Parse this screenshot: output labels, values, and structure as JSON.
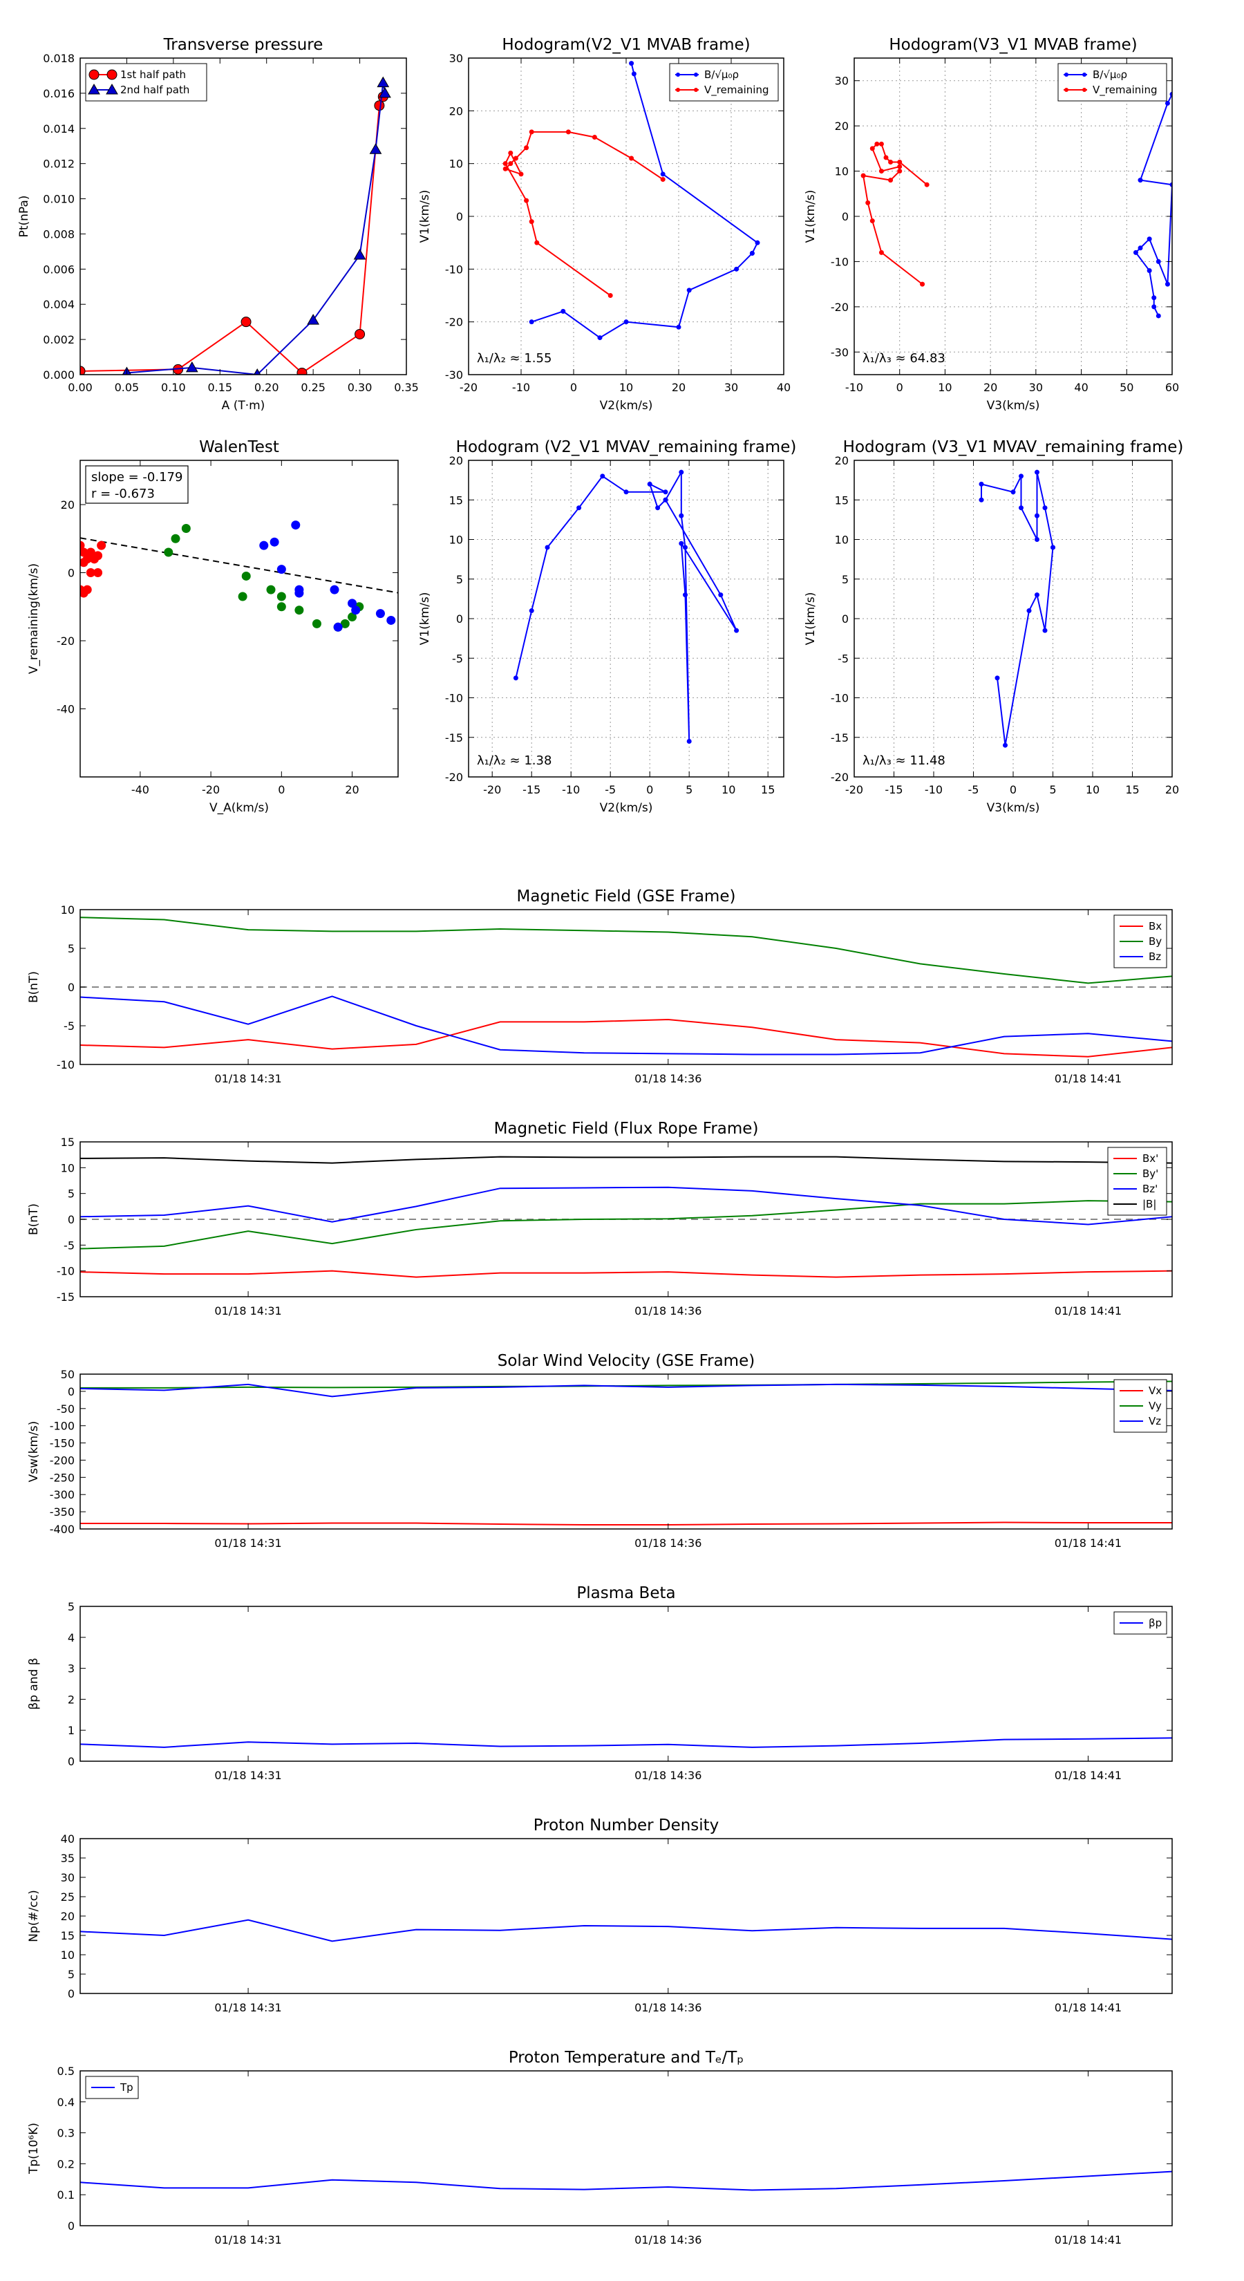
{
  "chart_data": [
    {
      "type": "scatter",
      "title": "Transverse pressure",
      "xlabel": "A (T·m)",
      "ylabel": "Pt(nPa)",
      "xlim": [
        0,
        0.35
      ],
      "ylim": [
        0,
        0.018
      ],
      "xticks": [
        0.0,
        0.05,
        0.1,
        0.15,
        0.2,
        0.25,
        0.3,
        0.35
      ],
      "xtick_labels": [
        "0.00",
        "0.05",
        "0.10",
        "0.15",
        "0.20",
        "0.25",
        "0.30",
        "0.35"
      ],
      "yticks": [
        0,
        0.002,
        0.004,
        0.006,
        0.008,
        0.01,
        0.012,
        0.014,
        0.016,
        0.018
      ],
      "ytick_labels": [
        "0.000",
        "0.002",
        "0.004",
        "0.006",
        "0.008",
        "0.010",
        "0.012",
        "0.014",
        "0.016",
        "0.018"
      ],
      "legend": "top-left",
      "series": [
        {
          "name": "1st half path",
          "color": "#ff0000",
          "marker": "circle",
          "x": [
            0.0,
            0.105,
            0.178,
            0.238,
            0.3,
            0.321,
            0.325
          ],
          "y": [
            0.0002,
            0.0003,
            0.003,
            0.0001,
            0.0023,
            0.0153,
            0.0158
          ]
        },
        {
          "name": "2nd half path",
          "color": "#0000cc",
          "marker": "triangle",
          "x": [
            0.05,
            0.12,
            0.19,
            0.25,
            0.3,
            0.317,
            0.325,
            0.327
          ],
          "y": [
            0.0001,
            0.0004,
            0.0,
            0.0031,
            0.0068,
            0.0128,
            0.0166,
            0.016
          ]
        }
      ]
    },
    {
      "type": "line",
      "title": "Hodogram(V2_V1 MVAB frame)",
      "xlabel": "V2(km/s)",
      "ylabel": "V1(km/s)",
      "xlim": [
        -20,
        40
      ],
      "ylim": [
        -30,
        30
      ],
      "xticks": [
        -20,
        -10,
        0,
        10,
        20,
        30,
        40
      ],
      "yticks": [
        -30,
        -20,
        -10,
        0,
        10,
        20,
        30
      ],
      "legend": "top-right",
      "annotation": "λ₁/λ₂ ≈ 1.55",
      "series": [
        {
          "name": "B/√μ₀ρ",
          "color": "#0000ff",
          "x": [
            11,
            11.5,
            17,
            35,
            34,
            34,
            31,
            22,
            20,
            10,
            5,
            -2,
            -8
          ],
          "y": [
            29,
            27,
            8,
            -5,
            -7,
            -7,
            -10,
            -14,
            -21,
            -20,
            -23,
            -18,
            -20
          ]
        },
        {
          "name": "V_remaining",
          "color": "#ff0000",
          "x": [
            17,
            11,
            4,
            -1,
            -8,
            -9,
            -11,
            -12,
            -13,
            -10,
            -12,
            -13,
            -9,
            -8,
            -7,
            7
          ],
          "y": [
            7,
            11,
            15,
            16,
            16,
            13,
            11,
            10,
            9,
            8,
            12,
            10,
            3,
            -1,
            -5,
            -15
          ]
        }
      ]
    },
    {
      "type": "line",
      "title": "Hodogram(V3_V1 MVAB frame)",
      "xlabel": "V3(km/s)",
      "ylabel": "V1(km/s)",
      "xlim": [
        -10,
        60
      ],
      "ylim": [
        -35,
        35
      ],
      "xticks": [
        -10,
        0,
        10,
        20,
        30,
        40,
        50,
        60
      ],
      "yticks": [
        -30,
        -20,
        -10,
        0,
        10,
        20,
        30
      ],
      "legend": "top-right",
      "annotation": "λ₁/λ₃ ≈ 64.83",
      "series": [
        {
          "name": "B/√μ₀ρ",
          "color": "#0000ff",
          "x": [
            60,
            59,
            53,
            60,
            59,
            57,
            55,
            53,
            52,
            55,
            56,
            56,
            57
          ],
          "y": [
            27,
            25,
            8,
            7,
            -15,
            -10,
            -5,
            -7,
            -8,
            -12,
            -18,
            -20,
            -22
          ]
        },
        {
          "name": "V_remaining",
          "color": "#ff0000",
          "x": [
            6,
            0,
            -2,
            -3,
            -4,
            -5,
            -6,
            -4,
            0,
            0,
            -2,
            -8,
            -7,
            -6,
            -4,
            5
          ],
          "y": [
            7,
            12,
            12,
            13,
            16,
            16,
            15,
            10,
            11,
            10,
            8,
            9,
            3,
            -1,
            -8,
            -15
          ]
        }
      ]
    },
    {
      "type": "scatter",
      "title": "WalenTest",
      "xlabel": "V_A(km/s)",
      "ylabel": "V_remaining(km/s)",
      "xlim": [
        -57,
        33
      ],
      "ylim": [
        -60,
        33
      ],
      "xticks": [
        -40,
        -20,
        0,
        20
      ],
      "yticks": [
        -40,
        -20,
        0,
        20
      ],
      "annotation_lines": [
        "slope = -0.179",
        "r = -0.673"
      ],
      "fit": {
        "slope": -0.179,
        "x": [
          -57,
          33
        ]
      },
      "series": [
        {
          "color": "#ff0000",
          "x": [
            -57,
            -56,
            -55,
            -54,
            -56,
            -53,
            -52,
            -54,
            -55,
            -56,
            -52,
            -57,
            -51
          ],
          "y": [
            8,
            6,
            4,
            6,
            3,
            4,
            5,
            0,
            -5,
            -6,
            0,
            -5,
            8
          ]
        },
        {
          "color": "#008000",
          "x": [
            -32,
            -30,
            -27,
            -11,
            -10,
            -3,
            0,
            0,
            5,
            10,
            16,
            18,
            20,
            22
          ],
          "y": [
            6,
            10,
            13,
            -7,
            -1,
            -5,
            -7,
            -10,
            -11,
            -15,
            -16,
            -15,
            -13,
            -10
          ]
        },
        {
          "color": "#0000ff",
          "x": [
            -5,
            -2,
            0,
            4,
            5,
            5,
            15,
            16,
            20,
            21,
            28,
            31
          ],
          "y": [
            8,
            9,
            1,
            14,
            -5,
            -6,
            -5,
            -16,
            -9,
            -11,
            -12,
            -14
          ]
        }
      ]
    },
    {
      "type": "line",
      "title": "Hodogram (V2_V1 MVAV_remaining frame)",
      "xlabel": "V2(km/s)",
      "ylabel": "V1(km/s)",
      "xlim": [
        -23,
        17
      ],
      "ylim": [
        -20,
        20
      ],
      "xticks": [
        -20,
        -15,
        -10,
        -5,
        0,
        5,
        10,
        15
      ],
      "yticks": [
        -20,
        -15,
        -10,
        -5,
        0,
        5,
        10,
        15,
        20
      ],
      "annotation": "λ₁/λ₂ ≈ 1.38",
      "series": [
        {
          "color": "#0000ff",
          "x": [
            -17,
            -15,
            -13,
            -9,
            -6,
            -3,
            2,
            0,
            1,
            2,
            4,
            4,
            4.5,
            5,
            4.5,
            4,
            11,
            9,
            2
          ],
          "y": [
            -7.5,
            1,
            9,
            14,
            18,
            16,
            16,
            17,
            14,
            15,
            18.5,
            13,
            9,
            -15.5,
            3,
            9.5,
            -1.5,
            3,
            15
          ]
        }
      ]
    },
    {
      "type": "line",
      "title": "Hodogram (V3_V1 MVAV_remaining frame)",
      "xlabel": "V3(km/s)",
      "ylabel": "V1(km/s)",
      "xlim": [
        -20,
        20
      ],
      "ylim": [
        -20,
        20
      ],
      "xticks": [
        -20,
        -15,
        -10,
        -5,
        0,
        5,
        10,
        15,
        20
      ],
      "yticks": [
        -20,
        -15,
        -10,
        -5,
        0,
        5,
        10,
        15,
        20
      ],
      "annotation": "λ₁/λ₃ ≈ 11.48",
      "series": [
        {
          "color": "#0000ff",
          "x": [
            -4,
            -4,
            0,
            1,
            1,
            3,
            3,
            3,
            4,
            5,
            5,
            4,
            3,
            2,
            -1,
            -2
          ],
          "y": [
            15,
            17,
            16,
            18,
            14,
            10,
            13,
            18.5,
            14,
            9,
            9,
            -1.5,
            3,
            1,
            -16,
            -7.5
          ]
        }
      ]
    },
    {
      "type": "line",
      "title": "Magnetic Field (GSE Frame)",
      "ylabel": "B(nT)",
      "ylim": [
        -10,
        10
      ],
      "yticks": [
        -10,
        -5,
        0,
        5,
        10
      ],
      "x_count": 14,
      "xticks_index": [
        2,
        7,
        12
      ],
      "xtick_labels": [
        "01/18 14:31",
        "01/18 14:36",
        "01/18 14:41"
      ],
      "zero_line": true,
      "legend": "top-right",
      "series": [
        {
          "name": "Bx",
          "color": "#ff0000",
          "values": [
            -7.5,
            -7.8,
            -6.8,
            -8,
            -7.4,
            -4.5,
            -4.5,
            -4.2,
            -5.2,
            -6.8,
            -7.2,
            -8.6,
            -9,
            -7.8
          ]
        },
        {
          "name": "By",
          "color": "#008000",
          "values": [
            9,
            8.7,
            7.4,
            7.2,
            7.2,
            7.5,
            7.3,
            7.1,
            6.5,
            5,
            3,
            1.7,
            0.5,
            1.4
          ]
        },
        {
          "name": "Bz",
          "color": "#0000ff",
          "values": [
            -1.3,
            -1.9,
            -4.8,
            -1.2,
            -5,
            -8.1,
            -8.5,
            -8.6,
            -8.7,
            -8.7,
            -8.5,
            -6.4,
            -6,
            -7
          ]
        }
      ]
    },
    {
      "type": "line",
      "title": "Magnetic Field (Flux Rope Frame)",
      "ylabel": "B(nT)",
      "ylim": [
        -15,
        15
      ],
      "yticks": [
        -15,
        -10,
        -5,
        0,
        5,
        10,
        15
      ],
      "x_count": 14,
      "xticks_index": [
        2,
        7,
        12
      ],
      "xtick_labels": [
        "01/18 14:31",
        "01/18 14:36",
        "01/18 14:41"
      ],
      "zero_line": true,
      "legend": "top-right",
      "series": [
        {
          "name": "Bx'",
          "color": "#ff0000",
          "values": [
            -10.2,
            -10.6,
            -10.6,
            -10,
            -11.2,
            -10.4,
            -10.4,
            -10.2,
            -10.8,
            -11.2,
            -10.8,
            -10.6,
            -10.2,
            -10
          ]
        },
        {
          "name": "By'",
          "color": "#008000",
          "values": [
            -5.7,
            -5.2,
            -2.3,
            -4.7,
            -2,
            -0.3,
            0,
            0.1,
            0.7,
            1.8,
            3,
            3,
            3.6,
            3.4
          ]
        },
        {
          "name": "Bz'",
          "color": "#0000ff",
          "values": [
            0.5,
            0.8,
            2.6,
            -0.5,
            2.5,
            6,
            6.1,
            6.2,
            5.5,
            4,
            2.7,
            0,
            -1,
            0.5
          ]
        },
        {
          "name": "|B|",
          "color": "#000000",
          "values": [
            11.8,
            11.9,
            11.3,
            10.9,
            11.6,
            12.1,
            12,
            12,
            12.1,
            12.1,
            11.6,
            11.2,
            11.1,
            10.9
          ]
        }
      ]
    },
    {
      "type": "line",
      "title": "Solar Wind Velocity (GSE Frame)",
      "ylabel": "Vsw(km/s)",
      "ylim": [
        -400,
        50
      ],
      "yticks": [
        -400,
        -350,
        -300,
        -250,
        -200,
        -150,
        -100,
        -50,
        0,
        50
      ],
      "x_count": 14,
      "xticks_index": [
        2,
        7,
        12
      ],
      "xtick_labels": [
        "01/18 14:31",
        "01/18 14:36",
        "01/18 14:41"
      ],
      "legend": "top-right",
      "series": [
        {
          "name": "Vx",
          "color": "#ff0000",
          "values": [
            -384,
            -384,
            -385,
            -383,
            -383,
            -386,
            -388,
            -388,
            -386,
            -385,
            -383,
            -381,
            -382,
            -382
          ]
        },
        {
          "name": "Vy",
          "color": "#008000",
          "values": [
            10,
            10,
            12,
            11,
            12,
            14,
            15,
            17,
            18,
            20,
            22,
            24,
            27,
            29
          ]
        },
        {
          "name": "Vz",
          "color": "#0000ff",
          "values": [
            8,
            3,
            20,
            -15,
            10,
            12,
            17,
            12,
            17,
            20,
            18,
            14,
            8,
            2
          ]
        }
      ]
    },
    {
      "type": "line",
      "title": "Plasma Beta",
      "ylabel": "βp and β",
      "ylim": [
        0,
        5
      ],
      "yticks": [
        0,
        1,
        2,
        3,
        4,
        5
      ],
      "x_count": 14,
      "xticks_index": [
        2,
        7,
        12
      ],
      "xtick_labels": [
        "01/18 14:31",
        "01/18 14:36",
        "01/18 14:41"
      ],
      "legend": "top-right",
      "series": [
        {
          "name": "βp",
          "color": "#0000ff",
          "values": [
            0.55,
            0.45,
            0.62,
            0.55,
            0.58,
            0.48,
            0.5,
            0.54,
            0.45,
            0.5,
            0.58,
            0.7,
            0.72,
            0.75
          ]
        }
      ]
    },
    {
      "type": "line",
      "title": "Proton Number Density",
      "ylabel": "Np(#/cc)",
      "ylim": [
        0,
        40
      ],
      "yticks": [
        0,
        5,
        10,
        15,
        20,
        25,
        30,
        35,
        40
      ],
      "x_count": 14,
      "xticks_index": [
        2,
        7,
        12
      ],
      "xtick_labels": [
        "01/18 14:31",
        "01/18 14:36",
        "01/18 14:41"
      ],
      "series": [
        {
          "color": "#0000ff",
          "values": [
            16,
            15,
            19,
            13.5,
            16.5,
            16.3,
            17.5,
            17.3,
            16.2,
            17,
            16.8,
            16.8,
            15.5,
            14
          ]
        }
      ]
    },
    {
      "type": "line",
      "title": "Proton Temperature and Tₑ/Tₚ",
      "ylabel": "Tp(10⁶K)",
      "ylim": [
        0,
        0.5
      ],
      "yticks": [
        0,
        0.1,
        0.2,
        0.3,
        0.4,
        0.5
      ],
      "x_count": 14,
      "xticks_index": [
        2,
        7,
        12
      ],
      "xtick_labels": [
        "01/18 14:31",
        "01/18 14:36",
        "01/18 14:41"
      ],
      "legend": "top-left",
      "series": [
        {
          "name": "Tp",
          "color": "#0000ff",
          "values": [
            0.14,
            0.122,
            0.122,
            0.148,
            0.14,
            0.12,
            0.117,
            0.125,
            0.115,
            0.12,
            0.132,
            0.145,
            0.16,
            0.175
          ]
        }
      ]
    }
  ]
}
